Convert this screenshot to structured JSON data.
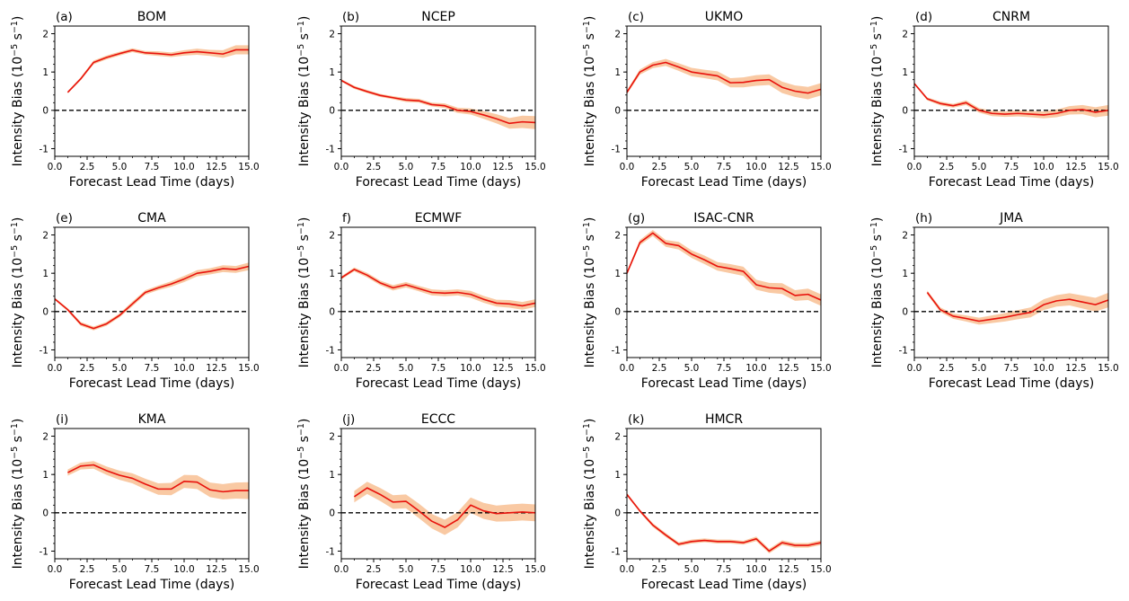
{
  "figure": {
    "xlabel": "Forecast Lead Time (days)",
    "ylabel_main": "Intensity Bias (10",
    "ylabel_exp1": "−5",
    "ylabel_mid": " s",
    "ylabel_exp2": "−1",
    "ylabel_end": ")"
  },
  "colors": {
    "line": "#e8120c",
    "band": "#f9c9a3",
    "zero_line": "#000000"
  },
  "chart_data": [
    {
      "type": "line",
      "label": "(a)",
      "title": "BOM",
      "xlim": [
        0,
        15
      ],
      "ylim": [
        -1.2,
        2.2
      ],
      "xticks": [
        "0.0",
        "2.5",
        "5.0",
        "7.5",
        "10.0",
        "12.5",
        "15.0"
      ],
      "yticks": [
        "-1",
        "0",
        "1",
        "2"
      ],
      "x": [
        1,
        2,
        3,
        4,
        5,
        6,
        7,
        8,
        9,
        10,
        11,
        12,
        13,
        14,
        15
      ],
      "y": [
        0.47,
        0.82,
        1.25,
        1.38,
        1.48,
        1.57,
        1.5,
        1.48,
        1.45,
        1.5,
        1.53,
        1.5,
        1.47,
        1.58,
        1.58
      ],
      "spread": [
        0.03,
        0.04,
        0.05,
        0.05,
        0.05,
        0.05,
        0.05,
        0.06,
        0.06,
        0.07,
        0.08,
        0.08,
        0.1,
        0.12,
        0.12
      ]
    },
    {
      "type": "line",
      "label": "(b)",
      "title": "NCEP",
      "xlim": [
        0,
        15
      ],
      "ylim": [
        -1.2,
        2.2
      ],
      "xticks": [
        "0.0",
        "2.5",
        "5.0",
        "7.5",
        "10.0",
        "12.5",
        "15.0"
      ],
      "yticks": [
        "-1",
        "0",
        "1",
        "2"
      ],
      "x": [
        0,
        1,
        2,
        3,
        4,
        5,
        6,
        7,
        8,
        9,
        10,
        11,
        12,
        13,
        14,
        15
      ],
      "y": [
        0.78,
        0.6,
        0.49,
        0.39,
        0.33,
        0.27,
        0.25,
        0.15,
        0.12,
        0.0,
        -0.03,
        -0.12,
        -0.22,
        -0.34,
        -0.3,
        -0.32
      ],
      "spread": [
        0.03,
        0.04,
        0.04,
        0.04,
        0.04,
        0.05,
        0.05,
        0.05,
        0.06,
        0.07,
        0.08,
        0.1,
        0.12,
        0.14,
        0.16,
        0.17
      ]
    },
    {
      "type": "line",
      "label": "(c)",
      "title": "UKMO",
      "xlim": [
        0,
        15
      ],
      "ylim": [
        -1.2,
        2.2
      ],
      "xticks": [
        "0.0",
        "2.5",
        "5.0",
        "7.5",
        "10.0",
        "12.5",
        "15.0"
      ],
      "yticks": [
        "-1",
        "0",
        "1",
        "2"
      ],
      "x": [
        0,
        1,
        2,
        3,
        4,
        5,
        6,
        7,
        8,
        9,
        10,
        11,
        12,
        13,
        14,
        15
      ],
      "y": [
        0.47,
        1.0,
        1.18,
        1.25,
        1.13,
        1.0,
        0.95,
        0.9,
        0.72,
        0.73,
        0.78,
        0.8,
        0.6,
        0.5,
        0.45,
        0.55
      ],
      "spread": [
        0.05,
        0.07,
        0.08,
        0.09,
        0.1,
        0.11,
        0.11,
        0.12,
        0.12,
        0.13,
        0.14,
        0.14,
        0.15,
        0.15,
        0.16,
        0.16
      ]
    },
    {
      "type": "line",
      "label": "(d)",
      "title": "CNRM",
      "xlim": [
        0,
        15
      ],
      "ylim": [
        -1.2,
        2.2
      ],
      "xticks": [
        "0.0",
        "2.5",
        "5.0",
        "7.5",
        "10.0",
        "12.5",
        "15.0"
      ],
      "yticks": [
        "-1",
        "0",
        "1",
        "2"
      ],
      "x": [
        0,
        1,
        2,
        3,
        4,
        5,
        6,
        7,
        8,
        9,
        10,
        11,
        12,
        13,
        14,
        15
      ],
      "y": [
        0.7,
        0.3,
        0.18,
        0.12,
        0.2,
        0.0,
        -0.08,
        -0.1,
        -0.08,
        -0.1,
        -0.12,
        -0.08,
        0.0,
        0.02,
        -0.05,
        0.0
      ],
      "spread": [
        0.03,
        0.04,
        0.05,
        0.05,
        0.06,
        0.06,
        0.07,
        0.07,
        0.08,
        0.08,
        0.09,
        0.1,
        0.11,
        0.12,
        0.13,
        0.14
      ]
    },
    {
      "type": "line",
      "label": "(e)",
      "title": "CMA",
      "xlim": [
        0,
        15
      ],
      "ylim": [
        -1.2,
        2.2
      ],
      "xticks": [
        "0.0",
        "2.5",
        "5.0",
        "7.5",
        "10.0",
        "12.5",
        "15.0"
      ],
      "yticks": [
        "-1",
        "0",
        "1",
        "2"
      ],
      "x": [
        0,
        1,
        2,
        3,
        4,
        5,
        6,
        7,
        8,
        9,
        10,
        11,
        12,
        13,
        14,
        15
      ],
      "y": [
        0.33,
        0.05,
        -0.32,
        -0.44,
        -0.32,
        -0.1,
        0.2,
        0.5,
        0.62,
        0.72,
        0.85,
        1.0,
        1.05,
        1.12,
        1.1,
        1.18
      ],
      "spread": [
        0.03,
        0.04,
        0.05,
        0.05,
        0.05,
        0.05,
        0.06,
        0.06,
        0.06,
        0.07,
        0.08,
        0.08,
        0.08,
        0.09,
        0.09,
        0.1
      ]
    },
    {
      "type": "line",
      "label": "f)",
      "title": "ECMWF",
      "xlim": [
        0,
        15
      ],
      "ylim": [
        -1.2,
        2.2
      ],
      "xticks": [
        "0.0",
        "2.5",
        "5.0",
        "7.5",
        "10.0",
        "12.5",
        "15.0"
      ],
      "yticks": [
        "-1",
        "0",
        "1",
        "2"
      ],
      "x": [
        0,
        1,
        2,
        3,
        4,
        5,
        6,
        7,
        8,
        9,
        10,
        11,
        12,
        13,
        14,
        15
      ],
      "y": [
        0.88,
        1.1,
        0.95,
        0.75,
        0.62,
        0.7,
        0.6,
        0.5,
        0.48,
        0.5,
        0.45,
        0.32,
        0.22,
        0.2,
        0.15,
        0.22
      ],
      "spread": [
        0.04,
        0.05,
        0.06,
        0.06,
        0.07,
        0.07,
        0.07,
        0.08,
        0.08,
        0.08,
        0.09,
        0.09,
        0.09,
        0.1,
        0.1,
        0.1
      ]
    },
    {
      "type": "line",
      "label": "(g)",
      "title": "ISAC-CNR",
      "xlim": [
        0,
        15
      ],
      "ylim": [
        -1.2,
        2.2
      ],
      "xticks": [
        "0.0",
        "2.5",
        "5.0",
        "7.5",
        "10.0",
        "12.5",
        "15.0"
      ],
      "yticks": [
        "-1",
        "0",
        "1",
        "2"
      ],
      "x": [
        0,
        1,
        2,
        3,
        4,
        5,
        6,
        7,
        8,
        9,
        10,
        11,
        12,
        13,
        14,
        15
      ],
      "y": [
        1.0,
        1.8,
        2.05,
        1.78,
        1.72,
        1.5,
        1.35,
        1.18,
        1.12,
        1.05,
        0.7,
        0.62,
        0.6,
        0.42,
        0.45,
        0.3
      ],
      "spread": [
        0.05,
        0.07,
        0.08,
        0.09,
        0.1,
        0.1,
        0.11,
        0.11,
        0.12,
        0.12,
        0.13,
        0.13,
        0.14,
        0.14,
        0.15,
        0.15
      ]
    },
    {
      "type": "line",
      "label": "(h)",
      "title": "JMA",
      "xlim": [
        0,
        15
      ],
      "ylim": [
        -1.2,
        2.2
      ],
      "xticks": [
        "0.0",
        "2.5",
        "5.0",
        "7.5",
        "10.0",
        "12.5",
        "15.0"
      ],
      "yticks": [
        "-1",
        "0",
        "1",
        "2"
      ],
      "x": [
        1,
        2,
        3,
        4,
        5,
        6,
        7,
        8,
        9,
        10,
        11,
        12,
        13,
        14,
        15
      ],
      "y": [
        0.5,
        0.05,
        -0.12,
        -0.18,
        -0.25,
        -0.2,
        -0.15,
        -0.08,
        -0.02,
        0.18,
        0.28,
        0.32,
        0.25,
        0.18,
        0.3
      ],
      "spread": [
        0.05,
        0.06,
        0.07,
        0.08,
        0.09,
        0.1,
        0.11,
        0.12,
        0.13,
        0.14,
        0.15,
        0.16,
        0.17,
        0.18,
        0.19
      ]
    },
    {
      "type": "line",
      "label": "(i)",
      "title": "KMA",
      "xlim": [
        0,
        15
      ],
      "ylim": [
        -1.2,
        2.2
      ],
      "xticks": [
        "0.0",
        "2.5",
        "5.0",
        "7.5",
        "10.0",
        "12.5",
        "15.0"
      ],
      "yticks": [
        "-1",
        "0",
        "1",
        "2"
      ],
      "x": [
        1,
        2,
        3,
        4,
        5,
        6,
        7,
        8,
        9,
        10,
        11,
        12,
        13,
        14,
        15
      ],
      "y": [
        1.05,
        1.22,
        1.25,
        1.1,
        0.98,
        0.9,
        0.75,
        0.62,
        0.62,
        0.82,
        0.8,
        0.6,
        0.55,
        0.58,
        0.58
      ],
      "spread": [
        0.08,
        0.09,
        0.1,
        0.11,
        0.12,
        0.13,
        0.14,
        0.15,
        0.16,
        0.17,
        0.18,
        0.19,
        0.2,
        0.21,
        0.22
      ]
    },
    {
      "type": "line",
      "label": "(j)",
      "title": "ECCC",
      "xlim": [
        0,
        15
      ],
      "ylim": [
        -1.2,
        2.2
      ],
      "xticks": [
        "0.0",
        "2.5",
        "5.0",
        "7.5",
        "10.0",
        "12.5",
        "15.0"
      ],
      "yticks": [
        "-1",
        "0",
        "1",
        "2"
      ],
      "x": [
        1,
        2,
        3,
        4,
        5,
        6,
        7,
        8,
        9,
        10,
        11,
        12,
        13,
        14,
        15
      ],
      "y": [
        0.42,
        0.65,
        0.48,
        0.28,
        0.3,
        0.05,
        -0.22,
        -0.38,
        -0.18,
        0.2,
        0.05,
        -0.02,
        0.0,
        0.02,
        0.0
      ],
      "spread": [
        0.15,
        0.16,
        0.17,
        0.18,
        0.18,
        0.19,
        0.19,
        0.2,
        0.2,
        0.2,
        0.21,
        0.21,
        0.22,
        0.22,
        0.22
      ]
    },
    {
      "type": "line",
      "label": "(k)",
      "title": "HMCR",
      "xlim": [
        0,
        15
      ],
      "ylim": [
        -1.2,
        2.2
      ],
      "xticks": [
        "0.0",
        "2.5",
        "5.0",
        "7.5",
        "10.0",
        "12.5",
        "15.0"
      ],
      "yticks": [
        "-1",
        "0",
        "1",
        "2"
      ],
      "x": [
        0,
        1,
        2,
        3,
        4,
        5,
        6,
        7,
        8,
        9,
        10,
        11,
        12,
        13,
        14,
        15
      ],
      "y": [
        0.48,
        0.05,
        -0.32,
        -0.58,
        -0.82,
        -0.75,
        -0.72,
        -0.75,
        -0.75,
        -0.78,
        -0.68,
        -1.0,
        -0.78,
        -0.85,
        -0.85,
        -0.78
      ],
      "spread": [
        0.04,
        0.04,
        0.05,
        0.05,
        0.05,
        0.05,
        0.05,
        0.05,
        0.05,
        0.05,
        0.06,
        0.06,
        0.06,
        0.06,
        0.06,
        0.06
      ]
    }
  ]
}
